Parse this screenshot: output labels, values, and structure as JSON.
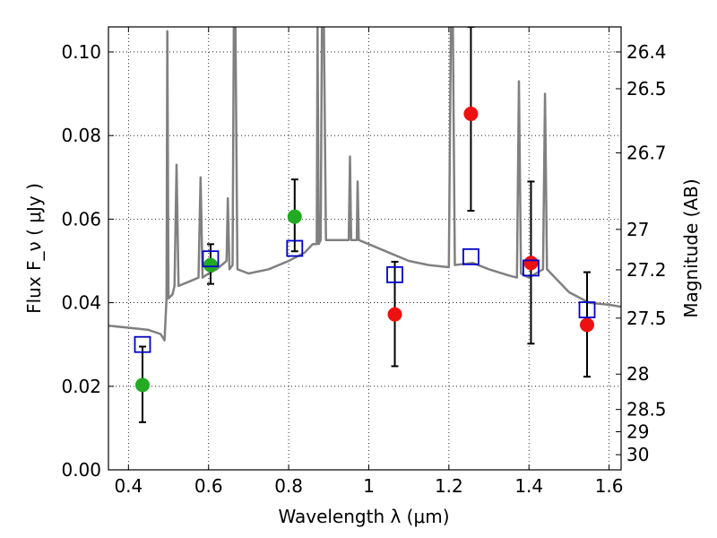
{
  "chart_data": {
    "type": "scatter",
    "xlabel": "Wavelength  λ (μm)",
    "ylabel": "Flux  F_ν  ( μJy )",
    "ylabel_right": "Magnitude (AB)",
    "xlim": [
      0.35,
      1.63
    ],
    "ylim": [
      0.0,
      0.106
    ],
    "grid": true,
    "x_ticks": [
      0.4,
      0.6,
      0.8,
      1.0,
      1.2,
      1.4,
      1.6
    ],
    "x_tick_labels": [
      "0.4",
      "0.6",
      "0.8",
      "1",
      "1.2",
      "1.4",
      "1.6"
    ],
    "y_ticks": [
      0.0,
      0.02,
      0.04,
      0.06,
      0.08,
      0.1
    ],
    "y_tick_labels": [
      "0.00",
      "0.02",
      "0.04",
      "0.06",
      "0.08",
      "0.10"
    ],
    "right_ticks": [
      {
        "label": "26.4",
        "mag": 26.4
      },
      {
        "label": "26.5",
        "mag": 26.5
      },
      {
        "label": "26.7",
        "mag": 26.7
      },
      {
        "label": "27",
        "mag": 27.0
      },
      {
        "label": "27.2",
        "mag": 27.2
      },
      {
        "label": "27.5",
        "mag": 27.5
      },
      {
        "label": "28",
        "mag": 28.0
      },
      {
        "label": "28.5",
        "mag": 28.5
      },
      {
        "label": "29",
        "mag": 29.0
      },
      {
        "label": "30",
        "mag": 30.0
      }
    ],
    "series": [
      {
        "name": "green detections",
        "color": "#22aa22",
        "marker": "circle",
        "points": [
          {
            "x": 0.435,
            "y": 0.0203,
            "err_low": 0.0114,
            "err_high": 0.0295
          },
          {
            "x": 0.605,
            "y": 0.049,
            "err_low": 0.0445,
            "err_high": 0.054
          },
          {
            "x": 0.815,
            "y": 0.0606,
            "err_low": 0.0523,
            "err_high": 0.0695
          }
        ]
      },
      {
        "name": "red detections",
        "color": "#ee1111",
        "marker": "circle",
        "points": [
          {
            "x": 1.065,
            "y": 0.0372,
            "err_low": 0.0248,
            "err_high": 0.0498
          },
          {
            "x": 1.255,
            "y": 0.0852,
            "err_low": 0.062,
            "err_high": 0.106
          },
          {
            "x": 1.405,
            "y": 0.0495,
            "err_low": 0.0302,
            "err_high": 0.069
          },
          {
            "x": 1.545,
            "y": 0.0347,
            "err_low": 0.0223,
            "err_high": 0.0473
          }
        ]
      },
      {
        "name": "model synthetic photometry",
        "color": "#0000cc",
        "marker": "open-square",
        "points": [
          {
            "x": 0.435,
            "y": 0.03
          },
          {
            "x": 0.605,
            "y": 0.0505
          },
          {
            "x": 0.815,
            "y": 0.053
          },
          {
            "x": 1.065,
            "y": 0.0467
          },
          {
            "x": 1.255,
            "y": 0.051
          },
          {
            "x": 1.405,
            "y": 0.0483
          },
          {
            "x": 1.545,
            "y": 0.0383
          }
        ]
      },
      {
        "name": "model spectrum",
        "color": "#808080",
        "type": "line",
        "points": [
          [
            0.35,
            0.0345
          ],
          [
            0.4,
            0.034
          ],
          [
            0.45,
            0.0335
          ],
          [
            0.48,
            0.0325
          ],
          [
            0.49,
            0.031
          ],
          [
            0.495,
            0.041
          ],
          [
            0.497,
            0.105
          ],
          [
            0.5,
            0.041
          ],
          [
            0.51,
            0.042
          ],
          [
            0.515,
            0.044
          ],
          [
            0.52,
            0.073
          ],
          [
            0.525,
            0.044
          ],
          [
            0.55,
            0.045
          ],
          [
            0.575,
            0.046
          ],
          [
            0.58,
            0.07
          ],
          [
            0.585,
            0.046
          ],
          [
            0.6,
            0.047
          ],
          [
            0.62,
            0.048
          ],
          [
            0.645,
            0.05
          ],
          [
            0.648,
            0.065
          ],
          [
            0.652,
            0.048
          ],
          [
            0.66,
            0.049
          ],
          [
            0.663,
            0.106
          ],
          [
            0.667,
            0.106
          ],
          [
            0.672,
            0.048
          ],
          [
            0.7,
            0.047
          ],
          [
            0.75,
            0.048
          ],
          [
            0.8,
            0.05
          ],
          [
            0.84,
            0.052
          ],
          [
            0.86,
            0.054
          ],
          [
            0.87,
            0.054
          ],
          [
            0.872,
            0.106
          ],
          [
            0.875,
            0.054
          ],
          [
            0.88,
            0.055
          ],
          [
            0.883,
            0.106
          ],
          [
            0.888,
            0.106
          ],
          [
            0.893,
            0.055
          ],
          [
            0.9,
            0.055
          ],
          [
            0.95,
            0.055
          ],
          [
            0.953,
            0.075
          ],
          [
            0.956,
            0.055
          ],
          [
            0.97,
            0.055
          ],
          [
            0.972,
            0.069
          ],
          [
            0.975,
            0.055
          ],
          [
            1.0,
            0.054
          ],
          [
            1.05,
            0.052
          ],
          [
            1.1,
            0.05
          ],
          [
            1.15,
            0.049
          ],
          [
            1.2,
            0.0485
          ],
          [
            1.205,
            0.106
          ],
          [
            1.21,
            0.106
          ],
          [
            1.215,
            0.049
          ],
          [
            1.26,
            0.0495
          ],
          [
            1.3,
            0.048
          ],
          [
            1.35,
            0.0465
          ],
          [
            1.37,
            0.046
          ],
          [
            1.375,
            0.093
          ],
          [
            1.38,
            0.047
          ],
          [
            1.4,
            0.046
          ],
          [
            1.435,
            0.048
          ],
          [
            1.44,
            0.09
          ],
          [
            1.445,
            0.048
          ],
          [
            1.5,
            0.0425
          ],
          [
            1.55,
            0.04
          ],
          [
            1.6,
            0.0395
          ],
          [
            1.63,
            0.039
          ]
        ]
      }
    ]
  }
}
